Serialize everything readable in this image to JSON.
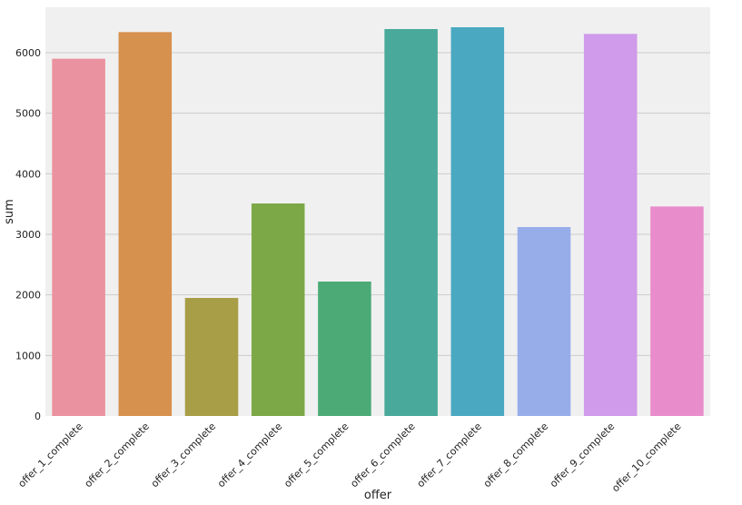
{
  "chart_data": {
    "type": "bar",
    "categories": [
      "offer_1_complete",
      "offer_2_complete",
      "offer_3_complete",
      "offer_4_complete",
      "offer_5_complete",
      "offer_6_complete",
      "offer_7_complete",
      "offer_8_complete",
      "offer_9_complete",
      "offer_10_complete"
    ],
    "values": [
      5900,
      6340,
      1950,
      3510,
      2220,
      6390,
      6420,
      3120,
      6310,
      3460
    ],
    "colors": [
      "#ea929f",
      "#d6914e",
      "#a89e47",
      "#7da848",
      "#4caa77",
      "#49a99b",
      "#4aa9c1",
      "#97adea",
      "#cf9bea",
      "#e98ccc"
    ],
    "xlabel": "offer",
    "ylabel": "sum",
    "ylim": [
      0,
      6750
    ],
    "yticks": [
      0,
      1000,
      2000,
      3000,
      4000,
      5000,
      6000
    ],
    "grid": "horizontal",
    "plot_background": "#f0f0f0"
  }
}
